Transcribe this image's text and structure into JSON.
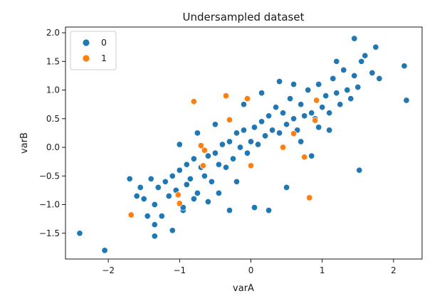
{
  "chart_data": {
    "type": "scatter",
    "title": "Undersampled dataset",
    "xlabel": "varA",
    "ylabel": "varB",
    "xlim": [
      -2.6,
      2.4
    ],
    "ylim": [
      -1.95,
      2.1
    ],
    "xticks": [
      -2,
      -1,
      0,
      1,
      2
    ],
    "xtick_labels": [
      "−2",
      "−1",
      "0",
      "1",
      "2"
    ],
    "yticks": [
      -1.5,
      -1.0,
      -0.5,
      0.0,
      0.5,
      1.0,
      1.5,
      2.0
    ],
    "ytick_labels": [
      "−1.5",
      "−1.0",
      "−0.5",
      "0.0",
      "0.5",
      "1.0",
      "1.5",
      "2.0"
    ],
    "grid": false,
    "legend_position": "top-left",
    "series": [
      {
        "name": "0",
        "color": "#1f77b4",
        "x": [
          -2.4,
          -2.05,
          -1.7,
          -1.6,
          -1.55,
          -1.5,
          -1.45,
          -1.4,
          -1.35,
          -1.35,
          -1.3,
          -1.25,
          -1.2,
          -1.15,
          -1.1,
          -1.05,
          -1.0,
          -0.95,
          -0.9,
          -0.9,
          -0.85,
          -0.8,
          -0.75,
          -0.7,
          -0.65,
          -0.6,
          -0.55,
          -0.5,
          -0.45,
          -0.4,
          -0.35,
          -0.3,
          -0.25,
          -0.2,
          -0.15,
          -0.1,
          -0.05,
          0.0,
          0.05,
          0.1,
          0.15,
          0.2,
          0.25,
          0.3,
          0.35,
          0.4,
          0.45,
          0.5,
          0.55,
          0.6,
          0.65,
          0.7,
          0.75,
          0.8,
          0.85,
          0.9,
          0.95,
          1.0,
          1.05,
          1.1,
          1.15,
          1.2,
          1.25,
          1.3,
          1.35,
          1.4,
          1.45,
          1.5,
          1.55,
          1.6,
          1.7,
          1.8,
          2.15,
          2.18,
          -1.35,
          -1.1,
          -0.95,
          -0.6,
          -0.3,
          0.25,
          0.5,
          1.1,
          1.52,
          -0.5,
          0.85,
          1.75,
          0.05,
          -0.75,
          -1.0,
          -0.1,
          0.7,
          1.2,
          1.45,
          -0.2,
          0.4,
          0.95,
          -0.8,
          -0.45,
          0.15,
          0.6
        ],
        "y": [
          -1.5,
          -1.8,
          -0.55,
          -0.85,
          -0.7,
          -0.9,
          -1.2,
          -0.55,
          -1.0,
          -1.35,
          -0.7,
          -1.2,
          -0.6,
          -0.85,
          -0.5,
          -0.75,
          -0.4,
          -1.1,
          -0.3,
          -0.65,
          -0.55,
          -0.2,
          -0.8,
          -0.35,
          -0.5,
          -0.15,
          -0.6,
          -0.1,
          -0.3,
          0.05,
          -0.35,
          0.1,
          -0.2,
          0.25,
          0.0,
          0.3,
          -0.1,
          0.1,
          0.35,
          0.05,
          0.45,
          0.2,
          0.55,
          0.3,
          0.7,
          0.25,
          0.6,
          0.4,
          0.85,
          0.5,
          0.3,
          0.75,
          0.55,
          1.0,
          0.6,
          0.5,
          1.1,
          0.7,
          0.9,
          0.6,
          1.2,
          0.95,
          0.75,
          1.35,
          1.0,
          0.85,
          1.25,
          1.05,
          1.5,
          1.6,
          1.3,
          1.2,
          1.42,
          0.82,
          -1.55,
          -1.45,
          -1.05,
          -0.95,
          -1.1,
          -1.1,
          -0.7,
          0.3,
          -0.4,
          0.4,
          -0.15,
          1.75,
          -1.05,
          0.25,
          0.05,
          0.75,
          0.1,
          1.5,
          1.9,
          -0.6,
          1.15,
          0.35,
          -0.9,
          -0.8,
          0.95,
          1.1
        ]
      },
      {
        "name": "1",
        "color": "#ff7f0e",
        "x": [
          -1.68,
          -1.02,
          -1.0,
          -0.8,
          -0.7,
          -0.65,
          -0.67,
          -0.35,
          -0.3,
          -0.05,
          0.0,
          0.45,
          0.6,
          0.75,
          0.82,
          0.9,
          0.92
        ],
        "y": [
          -1.18,
          -0.83,
          -0.98,
          0.8,
          0.03,
          -0.05,
          -0.32,
          0.9,
          0.48,
          0.85,
          -0.32,
          0.0,
          0.24,
          -0.17,
          -0.88,
          0.47,
          0.82
        ]
      }
    ]
  }
}
